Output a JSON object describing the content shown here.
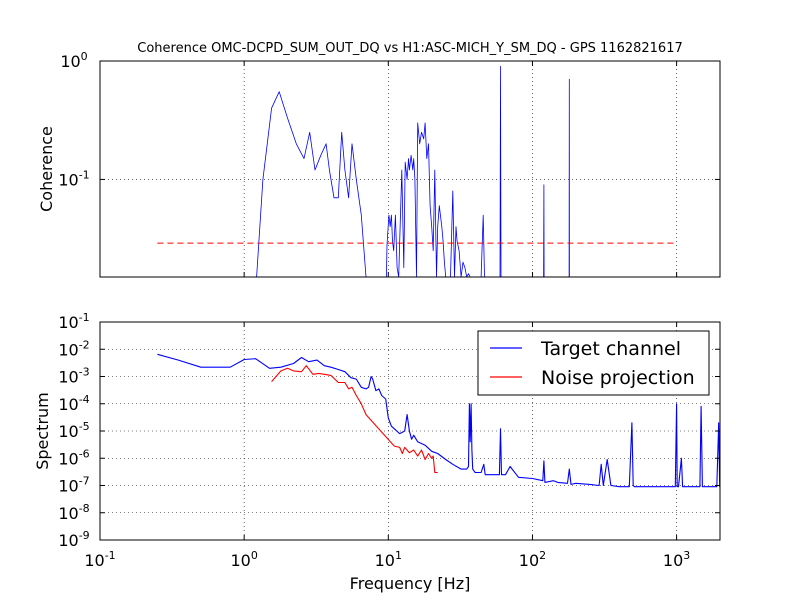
{
  "chart_data": [
    {
      "type": "line",
      "title": "Coherence OMC-DCPD_SUM_OUT_DQ vs H1:ASC-MICH_Y_SM_DQ - GPS 1162821617",
      "xlabel": "",
      "ylabel": "Coherence",
      "xscale": "log",
      "yscale": "log",
      "xlim": [
        0.1,
        2000
      ],
      "ylim": [
        0.015,
        1
      ],
      "grid": true,
      "y_ticks": [
        {
          "base": "10",
          "exp": "0",
          "value": 1
        },
        {
          "base": "10",
          "exp": "-1",
          "value": 0.1
        }
      ],
      "series": [
        {
          "color": "#0000ff",
          "style": "solid",
          "x": [
            1.22,
            1.35,
            1.55,
            1.75,
            2.0,
            2.3,
            2.6,
            2.85,
            3.1,
            3.4,
            3.7,
            3.9,
            4.2,
            4.5,
            4.75,
            5.0,
            5.3,
            5.6,
            6.0,
            6.5,
            7.0,
            7.2,
            9.7,
            9.8,
            10.1,
            10.3,
            10.5,
            10.7,
            10.9,
            11.2,
            11.5,
            11.8,
            12.0,
            12.4,
            12.8,
            13.1,
            13.5,
            13.8,
            14.0,
            14.4,
            14.8,
            15.0,
            15.3,
            15.7,
            16.0,
            16.5,
            17.0,
            17.6,
            18.0,
            18.5,
            19.0,
            19.5,
            20.0,
            20.5,
            21.0,
            21.6,
            22.0,
            22.6,
            23.0,
            23.5,
            24.0,
            24.5,
            25.0,
            25.5,
            26.0,
            27.0,
            28.0,
            28.8,
            29.5,
            30.0,
            31.0,
            32.0,
            33.0,
            34.0,
            35.0,
            36.0,
            37.0,
            38.0,
            40.0,
            42.0,
            44.0,
            45.5,
            46.5,
            48.0,
            52.0,
            56.0,
            58.5,
            59.5,
            60.0,
            60.5,
            61.5,
            65.0,
            75.0,
            90.0,
            105.0,
            117.0,
            119.5,
            120.0,
            120.5,
            123.0,
            140.0,
            155.0,
            165.0,
            175.0,
            178.0,
            179.5,
            180.0,
            180.5,
            182.0,
            200.0,
            230.0,
            260.0,
            300.0
          ],
          "y": [
            0.015,
            0.1,
            0.4,
            0.55,
            0.33,
            0.2,
            0.15,
            0.25,
            0.12,
            0.16,
            0.2,
            0.12,
            0.07,
            0.07,
            0.25,
            0.12,
            0.07,
            0.2,
            0.1,
            0.05,
            0.015,
            0.015,
            0.015,
            0.028,
            0.05,
            0.04,
            0.05,
            0.03,
            0.025,
            0.05,
            0.018,
            0.015,
            0.03,
            0.12,
            0.018,
            0.14,
            0.1,
            0.15,
            0.12,
            0.16,
            0.12,
            0.15,
            0.1,
            0.015,
            0.3,
            0.2,
            0.25,
            0.22,
            0.3,
            0.15,
            0.2,
            0.06,
            0.04,
            0.025,
            0.12,
            0.015,
            0.04,
            0.06,
            0.05,
            0.04,
            0.03,
            0.02,
            0.015,
            0.015,
            0.015,
            0.015,
            0.08,
            0.015,
            0.04,
            0.03,
            0.025,
            0.015,
            0.02,
            0.018,
            0.015,
            0.016,
            0.015,
            0.015,
            0.015,
            0.015,
            0.015,
            0.05,
            0.015,
            0.015,
            0.015,
            0.015,
            0.015,
            0.015,
            0.9,
            0.015,
            0.015,
            0.015,
            0.015,
            0.015,
            0.015,
            0.015,
            0.015,
            0.09,
            0.015,
            0.015,
            0.015,
            0.015,
            0.015,
            0.015,
            0.015,
            0.015,
            0.7,
            0.015,
            0.015,
            0.015,
            0.015,
            0.015,
            0.015
          ]
        },
        {
          "color": "#ff0000",
          "style": "dashed",
          "x": [
            0.25,
            1000
          ],
          "y": [
            0.029,
            0.029
          ]
        }
      ]
    },
    {
      "type": "line",
      "title": "",
      "xlabel": "Frequency [Hz]",
      "ylabel": "Spectrum",
      "xscale": "log",
      "yscale": "log",
      "xlim": [
        0.1,
        2000
      ],
      "ylim": [
        1e-09,
        0.1
      ],
      "grid": true,
      "legend": "top-right",
      "x_ticks": [
        {
          "base": "10",
          "exp": "-1",
          "value": 0.1
        },
        {
          "base": "10",
          "exp": "0",
          "value": 1
        },
        {
          "base": "10",
          "exp": "1",
          "value": 10
        },
        {
          "base": "10",
          "exp": "2",
          "value": 100
        },
        {
          "base": "10",
          "exp": "3",
          "value": 1000
        }
      ],
      "y_ticks": [
        {
          "base": "10",
          "exp": "-1",
          "value": 0.1
        },
        {
          "base": "10",
          "exp": "-2",
          "value": 0.01
        },
        {
          "base": "10",
          "exp": "-3",
          "value": 0.001
        },
        {
          "base": "10",
          "exp": "-4",
          "value": 0.0001
        },
        {
          "base": "10",
          "exp": "-5",
          "value": 1e-05
        },
        {
          "base": "10",
          "exp": "-6",
          "value": 1e-06
        },
        {
          "base": "10",
          "exp": "-7",
          "value": 1e-07
        },
        {
          "base": "10",
          "exp": "-8",
          "value": 1e-08
        },
        {
          "base": "10",
          "exp": "-9",
          "value": 1e-09
        }
      ],
      "series": [
        {
          "name": "Target channel",
          "color": "#0000ff",
          "style": "solid",
          "x": [
            0.25,
            0.35,
            0.5,
            0.8,
            1.0,
            1.2,
            1.5,
            1.8,
            2.2,
            2.5,
            2.8,
            3.2,
            3.6,
            4.0,
            4.5,
            5.0,
            5.5,
            6.0,
            6.5,
            7.0,
            7.3,
            7.6,
            7.8,
            8.2,
            8.6,
            9.0,
            9.6,
            10.0,
            10.5,
            11.0,
            12.0,
            13.0,
            13.5,
            14.0,
            14.5,
            15.0,
            16.0,
            18.0,
            20.0,
            22.0,
            25.0,
            28.0,
            32.0,
            35.0,
            36.0,
            36.5,
            37.0,
            37.5,
            38.0,
            38.5,
            40.0,
            44.0,
            46.0,
            47.0,
            50.0,
            55.0,
            59.0,
            60.0,
            61.0,
            65.0,
            70.0,
            80.0,
            100.0,
            118.0,
            120.0,
            122.0,
            140.0,
            150.0,
            175.0,
            180.0,
            185.0,
            200.0,
            250.0,
            290.0,
            300.0,
            310.0,
            330.0,
            350.0,
            400.0,
            470.0,
            490.0,
            500.0,
            510.0,
            550.0,
            600.0,
            700.0,
            800.0,
            900.0,
            950.0,
            980.0,
            1000.0,
            1010.0,
            1030.0,
            1080.0,
            1100.0,
            1150.0,
            1300.0,
            1450.0,
            1480.0,
            1510.0,
            1550.0,
            1700.0,
            1900.0,
            1960.0,
            1990.0,
            2000.0
          ],
          "y": [
            0.0065,
            0.004,
            0.0022,
            0.0022,
            0.0042,
            0.0045,
            0.002,
            0.0022,
            0.003,
            0.005,
            0.0035,
            0.004,
            0.0025,
            0.0022,
            0.0018,
            0.0015,
            0.0009,
            0.0008,
            0.0004,
            0.00035,
            0.0004,
            0.001,
            0.0008,
            0.0003,
            0.00035,
            0.0002,
            0.00015,
            3e-05,
            1.5e-05,
            1.2e-05,
            8e-06,
            1e-05,
            4e-05,
            1e-05,
            5e-06,
            7e-06,
            4e-06,
            3e-06,
            1.8e-06,
            1.5e-06,
            9e-07,
            6e-07,
            4e-07,
            4e-07,
            5e-07,
            0.0001,
            4e-06,
            0.0001,
            2e-06,
            4e-07,
            3e-07,
            3e-07,
            6e-07,
            2.5e-07,
            2.5e-07,
            2.5e-07,
            2.5e-07,
            1.2e-05,
            2.5e-07,
            2.5e-07,
            5e-07,
            2e-07,
            1.8e-07,
            1.5e-07,
            8e-07,
            1.3e-07,
            1.5e-07,
            1.3e-07,
            1.2e-07,
            4e-07,
            1.1e-07,
            1.2e-07,
            1.1e-07,
            1e-07,
            6e-07,
            1e-07,
            9e-07,
            1e-07,
            9e-08,
            9e-08,
            2e-05,
            1e-07,
            9e-08,
            9e-08,
            9e-08,
            9e-08,
            9e-08,
            9e-08,
            9e-08,
            9e-08,
            0.0001,
            9e-08,
            9e-08,
            1e-06,
            9e-08,
            9e-08,
            9e-08,
            9e-08,
            8e-05,
            9e-08,
            9e-08,
            9e-08,
            9e-08,
            2e-05,
            9e-08,
            9e-08
          ]
        },
        {
          "name": "Noise projection",
          "color": "#ff0000",
          "style": "solid",
          "x": [
            1.55,
            1.8,
            2.0,
            2.2,
            2.5,
            2.7,
            3.0,
            3.3,
            3.6,
            4.0,
            4.5,
            5.0,
            5.3,
            5.6,
            6.0,
            6.5,
            7.0,
            11.0,
            12.0,
            12.5,
            13.0,
            14.0,
            15.0,
            16.0,
            17.0,
            18.0,
            19.0,
            20.0,
            20.5,
            21.0,
            22.0
          ],
          "y": [
            0.00065,
            0.0016,
            0.002,
            0.0016,
            0.0015,
            0.0025,
            0.0012,
            0.0013,
            0.0012,
            0.0011,
            0.0006,
            0.0006,
            0.00035,
            0.0004,
            0.0002,
            0.0001,
            4e-05,
            2.8e-06,
            2.5e-06,
            1.5e-06,
            2.5e-06,
            1.6e-06,
            2e-06,
            1.2e-06,
            2e-06,
            9e-07,
            1.5e-06,
            1e-06,
            1.2e-06,
            3e-07,
            3e-07
          ]
        }
      ]
    }
  ]
}
